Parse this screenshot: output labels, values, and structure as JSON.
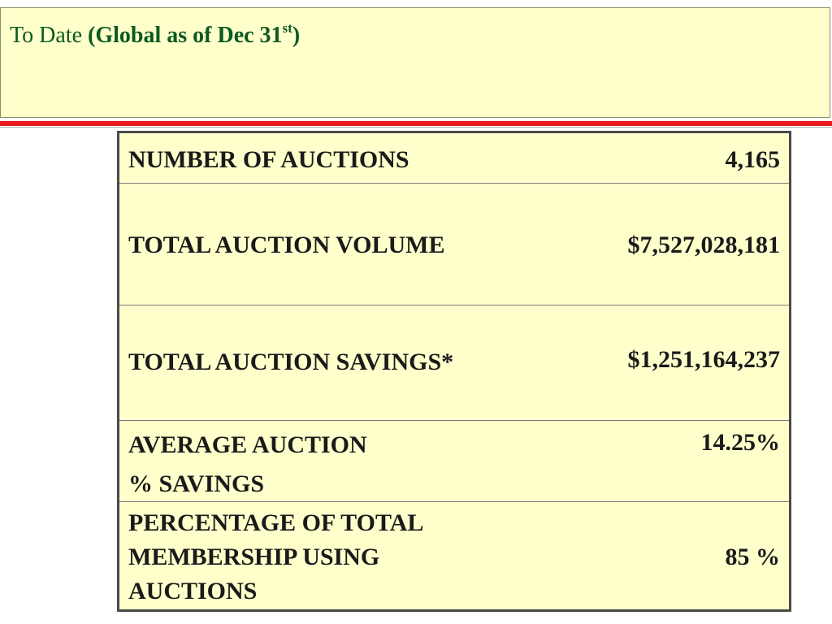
{
  "header": {
    "title_prefix": "To Date ",
    "title_bold_open": "(Global as of Dec 31",
    "title_superscript": "st",
    "title_close": ")"
  },
  "table": {
    "rows": [
      {
        "label_lines": [
          "NUMBER OF AUCTIONS"
        ],
        "value": "4,165"
      },
      {
        "label_lines": [
          "TOTAL AUCTION VOLUME"
        ],
        "value": "$7,527,028,181"
      },
      {
        "label_lines": [
          "TOTAL AUCTION SAVINGS*"
        ],
        "value": "$1,251,164,237"
      },
      {
        "label_lines": [
          "AVERAGE AUCTION",
          "% SAVINGS"
        ],
        "value": "14.25%"
      },
      {
        "label_lines": [
          "PERCENTAGE OF TOTAL",
          "MEMBERSHIP USING",
          "AUCTIONS"
        ],
        "value": "85 %"
      }
    ]
  },
  "colors": {
    "panel_background": "#ffffcc",
    "title_text": "#0b5a22",
    "divider_red": "#e81c1c",
    "table_border": "#4a4a4a"
  }
}
